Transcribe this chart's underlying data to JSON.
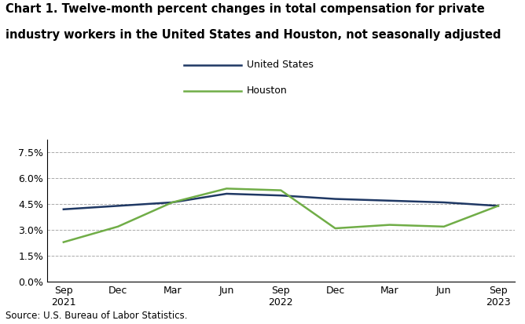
{
  "title_line1": "Chart 1. Twelve-month percent changes in total compensation for private",
  "title_line2": "industry workers in the United States and Houston, not seasonally adjusted",
  "x_labels": [
    "Sep\n2021",
    "Dec",
    "Mar",
    "Jun",
    "Sep\n2022",
    "Dec",
    "Mar",
    "Jun",
    "Sep\n2023"
  ],
  "us_values": [
    4.2,
    4.4,
    4.6,
    5.1,
    5.0,
    4.8,
    4.7,
    4.6,
    4.4
  ],
  "houston_values": [
    2.3,
    3.2,
    4.6,
    5.4,
    5.3,
    3.1,
    3.3,
    3.2,
    4.4
  ],
  "us_color": "#1f3864",
  "houston_color": "#70ad47",
  "ylim": [
    0.0,
    8.25
  ],
  "yticks": [
    0.0,
    1.5,
    3.0,
    4.5,
    6.0,
    7.5
  ],
  "ytick_labels": [
    "0.0%",
    "1.5%",
    "3.0%",
    "4.5%",
    "6.0%",
    "7.5%"
  ],
  "legend_labels": [
    "United States",
    "Houston"
  ],
  "source_text": "Source: U.S. Bureau of Labor Statistics.",
  "line_width": 1.8,
  "grid_color": "#aaaaaa",
  "grid_style": "--",
  "grid_lw": 0.7
}
